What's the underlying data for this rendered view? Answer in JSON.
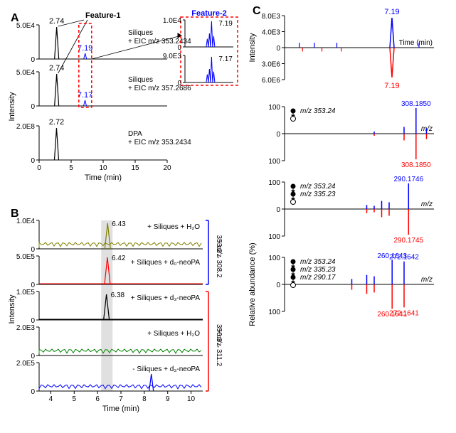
{
  "panelA": {
    "letter": "A",
    "feature1_label": "Feature-1",
    "feature2_label": "Feature-2",
    "axis_y_label": "Intensity",
    "axis_x_label": "Time (min)",
    "strips": [
      {
        "ymax": "5.0E4",
        "peak_time": "2.74",
        "peak_pos": 2.74,
        "feature_pos": 7.19,
        "feature_time": "7.19",
        "feature_color": "#0000ff",
        "right": "Siliques\n+ EIC m/z 353.2434"
      },
      {
        "ymax": "5.0E4",
        "peak_time": "2.74",
        "peak_pos": 2.74,
        "feature_pos": 7.17,
        "feature_time": "7.17",
        "feature_color": "#0000ff",
        "right": "Siliques\n+ EIC m/z 357.2686"
      },
      {
        "ymax": "2.0E8",
        "peak_time": "2.72",
        "peak_pos": 2.72,
        "right": "DPA\n+ EIC m/z 353.2434"
      }
    ],
    "x_ticks": [
      0,
      5,
      10,
      15,
      20
    ],
    "inset": {
      "top": {
        "ymax": "1.0E4",
        "peak_time": "7.19",
        "peak_pos": 7.19,
        "color": "#0000ff"
      },
      "bot": {
        "ymax": "9.0E3",
        "peak_time": "7.17",
        "peak_pos": 7.17,
        "color": "#0000ff"
      }
    }
  },
  "panelB": {
    "letter": "B",
    "axis_y_label": "Intensity",
    "axis_x_label": "Time (min)",
    "x_ticks": [
      4,
      5,
      6,
      7,
      8,
      9,
      10
    ],
    "band_center": 6.4,
    "right_label_top": "+ m/z\n353.2→308.2",
    "right_label_bot": "+ m/z\n356.3→311.2",
    "strips": [
      {
        "ymax": "1.0E4",
        "color": "#808000",
        "peak": "6.43",
        "peak_h": 0.9,
        "noise": true,
        "label": "+ Siliques + H₂O"
      },
      {
        "ymax": "5.0E5",
        "color": "#ff0000",
        "peak": "6.42",
        "peak_h": 0.95,
        "noise": false,
        "label": "+ Siliques + d₀-neoPA"
      },
      {
        "ymax": "1.0E5",
        "color": "#000000",
        "peak": "6.38",
        "peak_h": 0.9,
        "noise": false,
        "label": "+ Siliques + d₃-neoPA"
      },
      {
        "ymax": "2.0E3",
        "color": "#008000",
        "noise": true,
        "label": "+ Siliques + H₂O"
      },
      {
        "ymax": "2.0E5",
        "color": "#0000ff",
        "peak_alt": 8.3,
        "peak_h": 0.6,
        "noise": true,
        "label": "- Siliques + d₃-neoPA"
      }
    ]
  },
  "panelC": {
    "letter": "C",
    "top": {
      "y_label": "Intensity",
      "x_label": "Time (min)",
      "ymax_up": "8.0E3",
      "ymid_up": "4.0E3",
      "ymax_dn": "6.0E6",
      "ymid_dn": "3.0E6",
      "peak_time": "7.19",
      "up_color": "#0000ff",
      "dn_color": "#ff0000",
      "minor_up": [
        1.0,
        2.0,
        3.5,
        9.0
      ],
      "minor_dn": [
        1.2,
        2.5,
        3.8
      ]
    },
    "rel_label": "Relative abundance (%)",
    "mz_label": "m/z",
    "mirrors": [
      {
        "losses": 1,
        "loss_labels": [
          "m/z 353.24"
        ],
        "peaks_up": [
          {
            "x": 0.88,
            "h": 0.95,
            "lab": "308.1850"
          },
          {
            "x": 0.8,
            "h": 0.25
          },
          {
            "x": 0.95,
            "h": 0.2
          },
          {
            "x": 0.6,
            "h": 0.08
          }
        ],
        "peaks_dn": [
          {
            "x": 0.88,
            "h": 0.95,
            "lab": "308.1850"
          },
          {
            "x": 0.8,
            "h": 0.25
          },
          {
            "x": 0.95,
            "h": 0.2
          },
          {
            "x": 0.6,
            "h": 0.08
          }
        ]
      },
      {
        "losses": 2,
        "loss_labels": [
          "m/z 353.24",
          "m/z 335.23"
        ],
        "peaks_up": [
          {
            "x": 0.83,
            "h": 0.95,
            "lab": "290.1746"
          },
          {
            "x": 0.65,
            "h": 0.3
          },
          {
            "x": 0.7,
            "h": 0.25
          },
          {
            "x": 0.55,
            "h": 0.15
          },
          {
            "x": 0.6,
            "h": 0.12
          }
        ],
        "peaks_dn": [
          {
            "x": 0.83,
            "h": 0.95,
            "lab": "290.1745"
          },
          {
            "x": 0.65,
            "h": 0.3
          },
          {
            "x": 0.7,
            "h": 0.25
          },
          {
            "x": 0.55,
            "h": 0.15
          },
          {
            "x": 0.6,
            "h": 0.12
          }
        ]
      },
      {
        "losses": 3,
        "loss_labels": [
          "m/z 353.24",
          "m/z 335.23",
          "m/z 290.17"
        ],
        "peaks_up": [
          {
            "x": 0.72,
            "h": 0.9,
            "lab": "260.1643"
          },
          {
            "x": 0.8,
            "h": 0.85,
            "lab": "272.1642"
          },
          {
            "x": 0.55,
            "h": 0.35
          },
          {
            "x": 0.6,
            "h": 0.3
          },
          {
            "x": 0.45,
            "h": 0.2
          }
        ],
        "peaks_dn": [
          {
            "x": 0.72,
            "h": 0.9,
            "lab": "260.1641"
          },
          {
            "x": 0.8,
            "h": 0.85,
            "lab": "272.1641"
          },
          {
            "x": 0.55,
            "h": 0.35
          },
          {
            "x": 0.6,
            "h": 0.3
          },
          {
            "x": 0.45,
            "h": 0.2
          }
        ]
      }
    ]
  },
  "colors": {
    "blue": "#0000ff",
    "red": "#ff0000",
    "black": "#000000"
  }
}
